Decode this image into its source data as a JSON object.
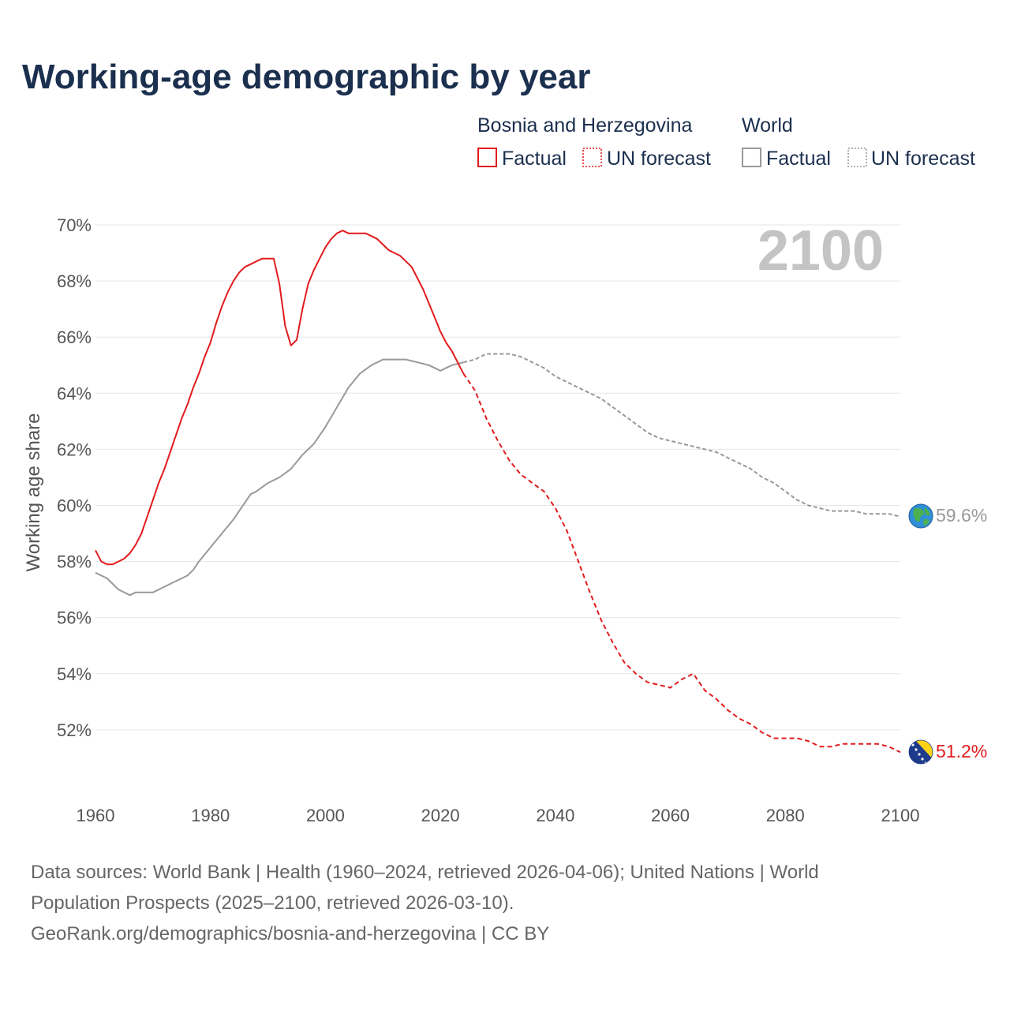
{
  "title": "Working-age demographic by year",
  "legend": {
    "groups": [
      {
        "name": "Bosnia and Herzegovina",
        "factual_label": "Factual",
        "forecast_label": "UN forecast",
        "color": "#e31a1c"
      },
      {
        "name": "World",
        "factual_label": "Factual",
        "forecast_label": "UN forecast",
        "color": "#999999"
      }
    ]
  },
  "watermark_year": "2100",
  "end_labels": {
    "world": "59.6%",
    "bih": "51.2%",
    "world_icon": "globe-icon",
    "bih_icon": "bosnia-flag-icon"
  },
  "chart_data": {
    "type": "line",
    "ylabel": "Working age share",
    "xlabel": "",
    "xlim": [
      1960,
      2100
    ],
    "ylim": [
      50,
      70
    ],
    "x_ticks": [
      1960,
      1980,
      2000,
      2020,
      2040,
      2060,
      2080,
      2100
    ],
    "x_tick_labels": [
      "1960",
      "1980",
      "2000",
      "2020",
      "2040",
      "2060",
      "2080",
      "2100"
    ],
    "y_ticks": [
      52,
      54,
      56,
      58,
      60,
      62,
      64,
      66,
      68,
      70
    ],
    "y_tick_labels": [
      "52%",
      "54%",
      "56%",
      "58%",
      "60%",
      "62%",
      "64%",
      "66%",
      "68%",
      "70%"
    ],
    "grid": true,
    "series": [
      {
        "name": "Bosnia and Herzegovina",
        "segment": "Factual",
        "color": "#e31a1c",
        "dash": "solid",
        "x": [
          1960,
          1961,
          1962,
          1963,
          1964,
          1965,
          1966,
          1967,
          1968,
          1969,
          1970,
          1971,
          1972,
          1973,
          1974,
          1975,
          1976,
          1977,
          1978,
          1979,
          1980,
          1981,
          1982,
          1983,
          1984,
          1985,
          1986,
          1987,
          1988,
          1989,
          1990,
          1991,
          1992,
          1993,
          1994,
          1995,
          1996,
          1997,
          1998,
          1999,
          2000,
          2001,
          2002,
          2003,
          2004,
          2005,
          2006,
          2007,
          2008,
          2009,
          2010,
          2011,
          2012,
          2013,
          2014,
          2015,
          2016,
          2017,
          2018,
          2019,
          2020,
          2021,
          2022,
          2023,
          2024
        ],
        "y": [
          58.4,
          58.0,
          57.9,
          57.9,
          58.0,
          58.1,
          58.3,
          58.6,
          59.0,
          59.6,
          60.2,
          60.8,
          61.3,
          61.9,
          62.5,
          63.1,
          63.6,
          64.2,
          64.7,
          65.3,
          65.8,
          66.5,
          67.1,
          67.6,
          68.0,
          68.3,
          68.5,
          68.6,
          68.7,
          68.8,
          68.8,
          68.8,
          67.9,
          66.4,
          65.7,
          65.9,
          67.0,
          67.9,
          68.4,
          68.8,
          69.2,
          69.5,
          69.7,
          69.8,
          69.7,
          69.7,
          69.7,
          69.7,
          69.6,
          69.5,
          69.3,
          69.1,
          69.0,
          68.9,
          68.7,
          68.5,
          68.1,
          67.7,
          67.2,
          66.7,
          66.2,
          65.8,
          65.5,
          65.1,
          64.7
        ]
      },
      {
        "name": "Bosnia and Herzegovina",
        "segment": "UN forecast",
        "color": "#e31a1c",
        "dash": "dashed",
        "x": [
          2024,
          2026,
          2028,
          2030,
          2032,
          2034,
          2036,
          2038,
          2040,
          2042,
          2044,
          2046,
          2048,
          2050,
          2052,
          2054,
          2056,
          2058,
          2060,
          2062,
          2064,
          2066,
          2068,
          2070,
          2072,
          2074,
          2076,
          2078,
          2080,
          2082,
          2084,
          2086,
          2088,
          2090,
          2092,
          2094,
          2096,
          2098,
          2100
        ],
        "y": [
          64.7,
          64.1,
          63.1,
          62.3,
          61.6,
          61.1,
          60.8,
          60.5,
          59.9,
          59.1,
          58.0,
          56.9,
          55.9,
          55.1,
          54.4,
          54.0,
          53.7,
          53.6,
          53.5,
          53.8,
          54.0,
          53.4,
          53.1,
          52.7,
          52.4,
          52.2,
          51.9,
          51.7,
          51.7,
          51.7,
          51.6,
          51.4,
          51.4,
          51.5,
          51.5,
          51.5,
          51.5,
          51.4,
          51.2
        ]
      },
      {
        "name": "World",
        "segment": "Factual",
        "color": "#999999",
        "dash": "solid",
        "x": [
          1960,
          1962,
          1964,
          1966,
          1967,
          1968,
          1970,
          1972,
          1973,
          1974,
          1976,
          1977,
          1978,
          1980,
          1982,
          1984,
          1985,
          1986,
          1987,
          1988,
          1990,
          1992,
          1994,
          1996,
          1998,
          2000,
          2002,
          2004,
          2006,
          2008,
          2010,
          2012,
          2014,
          2016,
          2018,
          2019,
          2020,
          2021,
          2022,
          2024
        ],
        "y": [
          57.6,
          57.4,
          57.0,
          56.8,
          56.9,
          56.9,
          56.9,
          57.1,
          57.2,
          57.3,
          57.5,
          57.7,
          58.0,
          58.5,
          59.0,
          59.5,
          59.8,
          60.1,
          60.4,
          60.5,
          60.8,
          61.0,
          61.3,
          61.8,
          62.2,
          62.8,
          63.5,
          64.2,
          64.7,
          65.0,
          65.2,
          65.2,
          65.2,
          65.1,
          65.0,
          64.9,
          64.8,
          64.9,
          65.0,
          65.1
        ]
      },
      {
        "name": "World",
        "segment": "UN forecast",
        "color": "#999999",
        "dash": "dotted",
        "x": [
          2024,
          2026,
          2028,
          2030,
          2032,
          2034,
          2036,
          2038,
          2040,
          2042,
          2044,
          2046,
          2048,
          2050,
          2052,
          2054,
          2056,
          2058,
          2060,
          2062,
          2064,
          2066,
          2068,
          2070,
          2072,
          2074,
          2076,
          2078,
          2080,
          2082,
          2084,
          2086,
          2088,
          2090,
          2092,
          2094,
          2096,
          2098,
          2100
        ],
        "y": [
          65.1,
          65.2,
          65.4,
          65.4,
          65.4,
          65.3,
          65.1,
          64.9,
          64.6,
          64.4,
          64.2,
          64.0,
          63.8,
          63.5,
          63.2,
          62.9,
          62.6,
          62.4,
          62.3,
          62.2,
          62.1,
          62.0,
          61.9,
          61.7,
          61.5,
          61.3,
          61.0,
          60.8,
          60.5,
          60.2,
          60.0,
          59.9,
          59.8,
          59.8,
          59.8,
          59.7,
          59.7,
          59.7,
          59.6
        ]
      }
    ]
  },
  "footer": {
    "line1": "Data sources: World Bank | Health (1960–2024, retrieved 2026-04-06); United Nations | World",
    "line2": "Population Prospects (2025–2100, retrieved 2026-03-10).",
    "line3": "GeoRank.org/demographics/bosnia-and-herzegovina | CC BY"
  }
}
